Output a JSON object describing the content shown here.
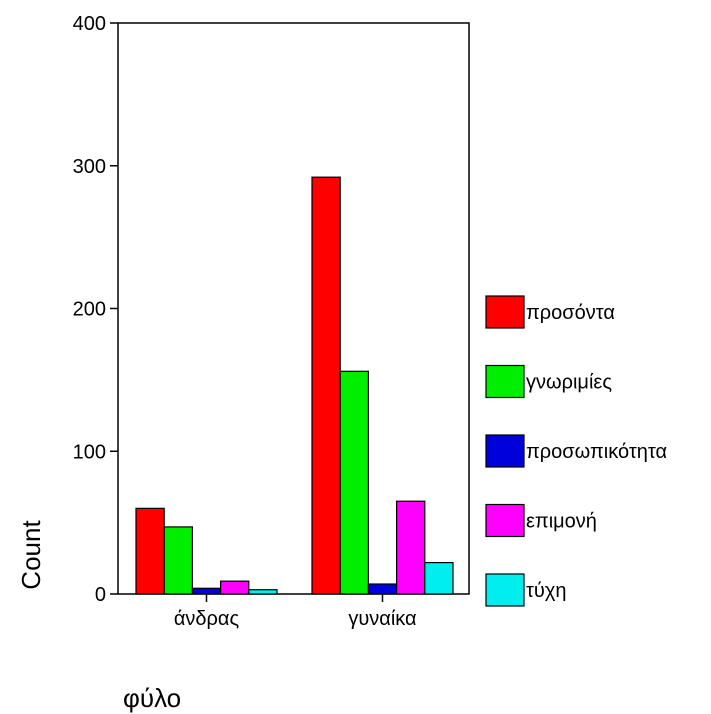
{
  "chart_data": {
    "type": "bar",
    "title": "",
    "xlabel": "φύλο",
    "ylabel": "Count",
    "categories": [
      "άνδρας",
      "γυναίκα"
    ],
    "ylim": [
      0,
      400
    ],
    "yticks": [
      0,
      100,
      200,
      300,
      400
    ],
    "legend_position": "right",
    "grid": false,
    "series": [
      {
        "name": "προσόντα",
        "color": "#ff0000",
        "values": [
          60,
          292
        ]
      },
      {
        "name": "γνωριμίες",
        "color": "#00ee00",
        "values": [
          47,
          156
        ]
      },
      {
        "name": "προσωπικότητα",
        "color": "#0000dd",
        "values": [
          4,
          7
        ]
      },
      {
        "name": "επιμονή",
        "color": "#ff00ff",
        "values": [
          9,
          65
        ]
      },
      {
        "name": "τύχη",
        "color": "#00eeee",
        "values": [
          3,
          22
        ]
      }
    ]
  }
}
